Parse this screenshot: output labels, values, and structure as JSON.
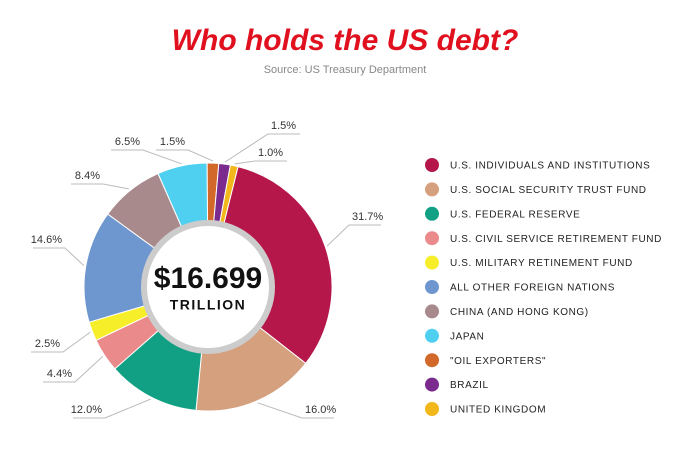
{
  "chart_data": {
    "type": "donut",
    "title": "Who holds the US debt?",
    "subtitle": "Source: US Treasury Department",
    "center_value": "$16.699",
    "center_label": "TRILLION",
    "categories": [
      "U.S. INDIVIDUALS AND INSTITUTIONS",
      "U.S. SOCIAL SECURITY TRUST FUND",
      "U.S. FEDERAL RESERVE",
      "U.S. CIVIL SERVICE RETIREMENT FUND",
      "U.S. MILITARY RETINEMENT FUND",
      "ALL OTHER FOREIGN NATIONS",
      "CHINA (AND HONG KONG)",
      "JAPAN",
      "\"OIL EXPORTERS\"",
      "BRAZIL",
      "UNITED KINGDOM"
    ],
    "values": [
      31.7,
      16.0,
      12.0,
      4.4,
      2.5,
      14.6,
      8.4,
      6.5,
      1.5,
      1.5,
      1.0
    ],
    "value_labels": [
      "31.7%",
      "16.0%",
      "12.0%",
      "4.4%",
      "2.5%",
      "14.6%",
      "8.4%",
      "6.5%",
      "1.5%",
      "1.5%",
      "1.0%"
    ],
    "colors": [
      "#b5174b",
      "#d4a07d",
      "#12a085",
      "#ea8a8a",
      "#f7ee2a",
      "#6e97cf",
      "#a98a8c",
      "#4fd0f0",
      "#d2692a",
      "#7b2a8e",
      "#f2b81b"
    ]
  }
}
